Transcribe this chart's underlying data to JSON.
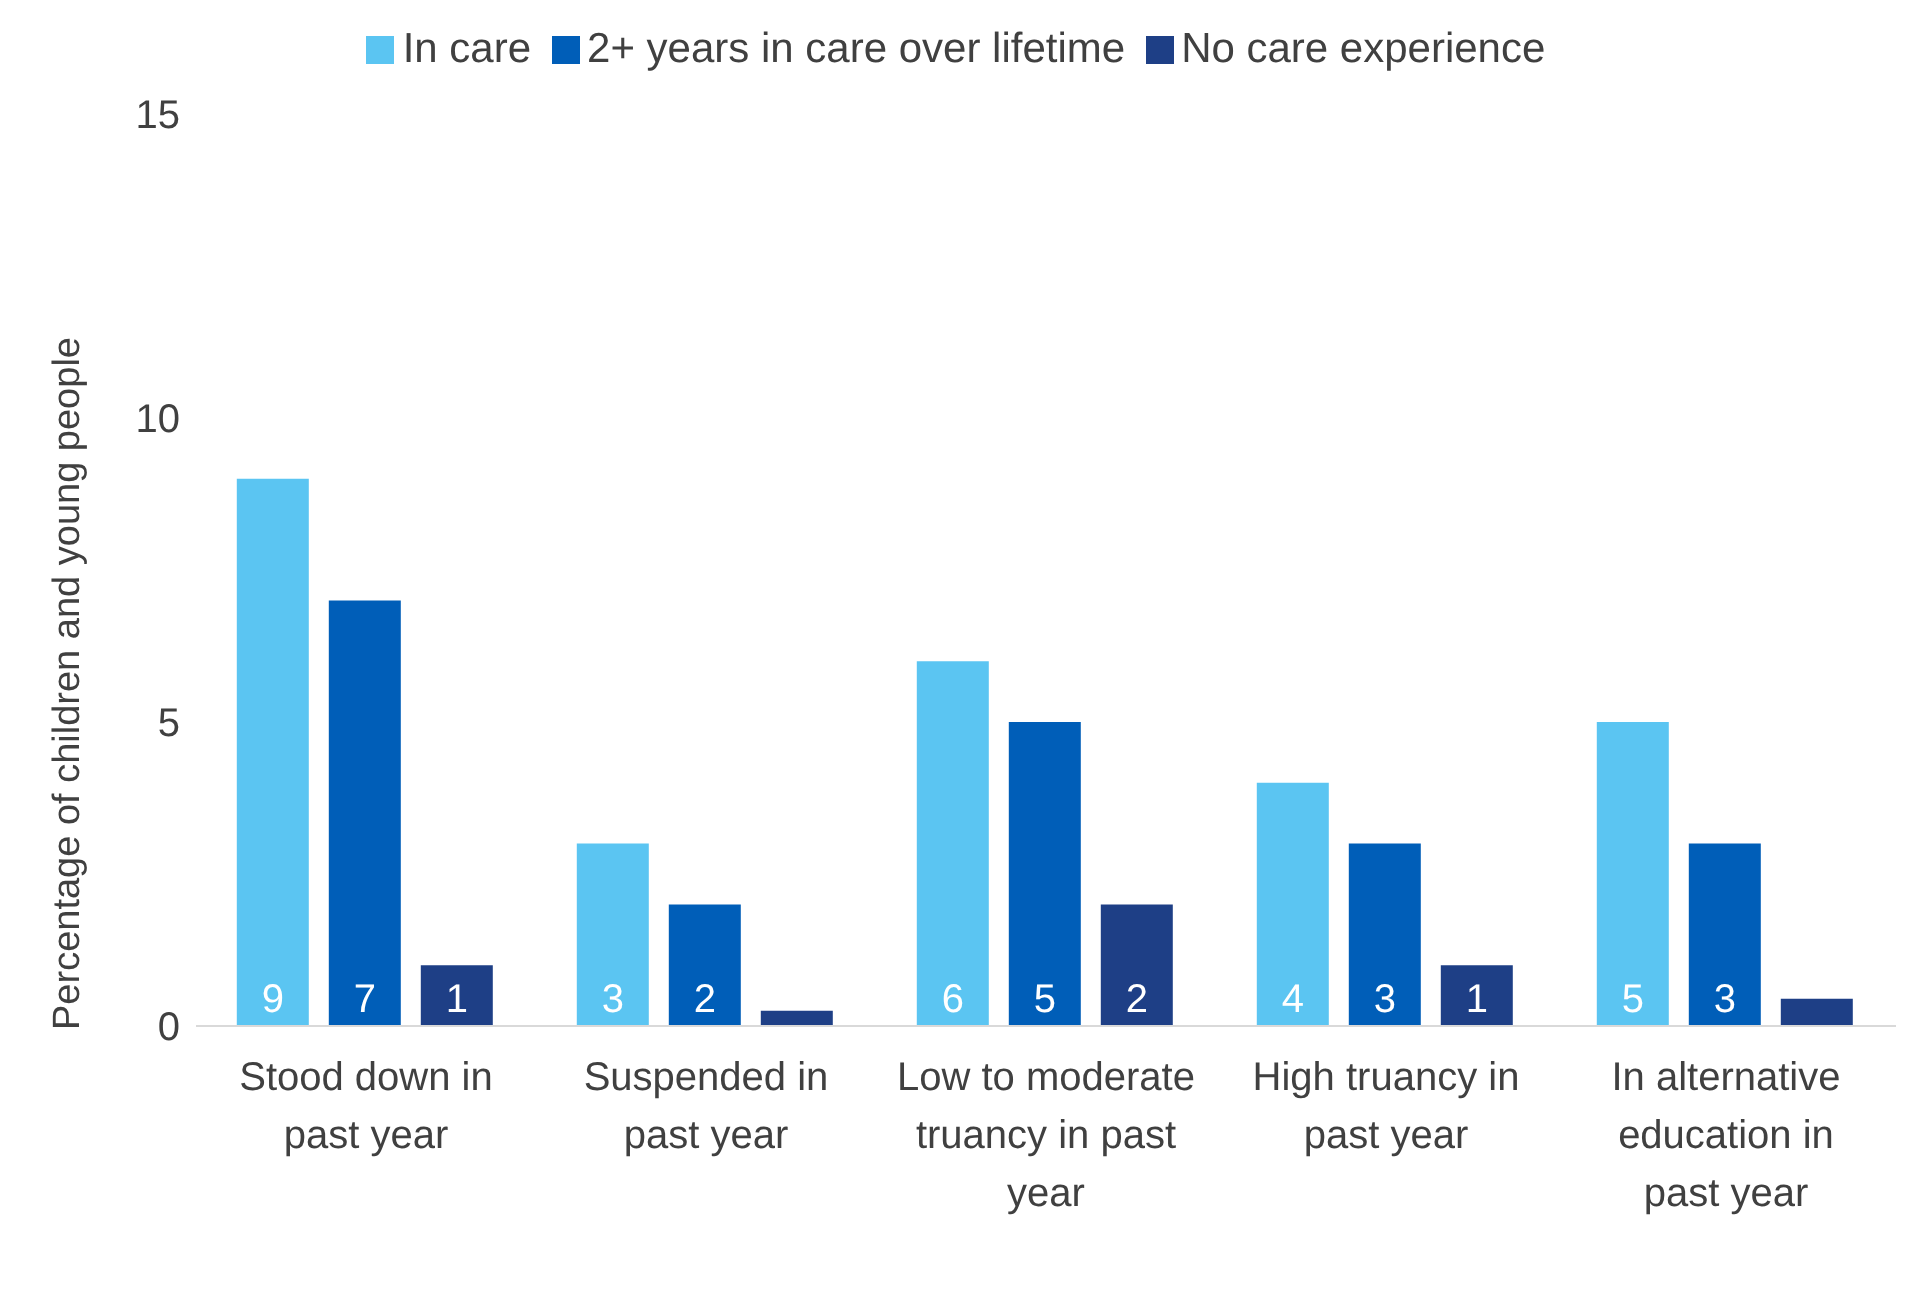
{
  "chart_data": {
    "type": "bar",
    "ylabel": "Percentage of children and young people",
    "categories": [
      "Stood down in past year",
      "Suspended in past year",
      "Low to moderate truancy in past year",
      "High truancy in past year",
      "In alternative education in past year"
    ],
    "series": [
      {
        "name": "In care",
        "color": "#5bc5f2",
        "values": [
          9,
          3,
          6,
          4,
          5
        ],
        "value_labels": [
          "9",
          "3",
          "6",
          "4",
          "5"
        ]
      },
      {
        "name": "2+ years in care over lifetime",
        "color": "#005eb8",
        "values": [
          7,
          2,
          5,
          3,
          3
        ],
        "value_labels": [
          "7",
          "2",
          "5",
          "3",
          "3"
        ]
      },
      {
        "name": "No care experience",
        "color": "#1e3f86",
        "values": [
          1,
          0.25,
          2,
          1,
          0.45
        ],
        "value_labels": [
          "1",
          null,
          "2",
          "1",
          null
        ]
      }
    ],
    "ylim": [
      0,
      15
    ],
    "yticks": [
      0,
      5,
      10,
      15
    ],
    "legend": "top"
  }
}
